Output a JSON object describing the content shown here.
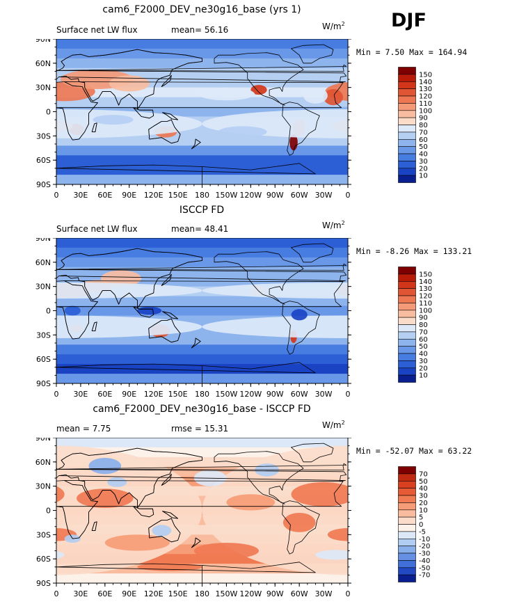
{
  "season": "DJF",
  "axes": {
    "lat_labels": [
      "90N",
      "60N",
      "30N",
      "0",
      "30S",
      "60S",
      "90S"
    ],
    "lon_labels": [
      "0",
      "30E",
      "60E",
      "90E",
      "120E",
      "150E",
      "180",
      "150W",
      "120W",
      "90W",
      "60W",
      "30W",
      "0"
    ]
  },
  "panels": [
    {
      "id": "model",
      "title": "cam6_F2000_DEV_ne30g16_base (yrs 1)",
      "left_label": "Surface net LW flux",
      "mean_label": "mean=",
      "mean_value": "56.16",
      "units": "W/m",
      "units_exp": "2",
      "range_text": "Min =   7.50 Max = 164.94",
      "colorbar": {
        "labels": [
          "150",
          "140",
          "130",
          "120",
          "110",
          "100",
          "90",
          "80",
          "70",
          "60",
          "50",
          "40",
          "30",
          "20",
          "10"
        ],
        "colors": [
          "#7f0000",
          "#b81c08",
          "#d2361a",
          "#e05533",
          "#ec7752",
          "#f49a78",
          "#f8bda1",
          "#fbdcc9",
          "#dde9f8",
          "#b5cff3",
          "#8eb4ee",
          "#6a98e8",
          "#477ce1",
          "#2c5fd6",
          "#1a43c4",
          "#0a1f8f"
        ]
      }
    },
    {
      "id": "obs",
      "title": "ISCCP FD",
      "left_label": "Surface net LW flux",
      "mean_label": "mean=",
      "mean_value": "48.41",
      "units": "W/m",
      "units_exp": "2",
      "range_text": "Min =  -8.26 Max = 133.21",
      "colorbar": {
        "labels": [
          "150",
          "140",
          "130",
          "120",
          "110",
          "100",
          "90",
          "80",
          "70",
          "60",
          "50",
          "40",
          "30",
          "20",
          "10"
        ],
        "colors": [
          "#7f0000",
          "#b81c08",
          "#d2361a",
          "#e05533",
          "#ec7752",
          "#f49a78",
          "#f8bda1",
          "#fbdcc9",
          "#dde9f8",
          "#b5cff3",
          "#8eb4ee",
          "#6a98e8",
          "#477ce1",
          "#2c5fd6",
          "#1a43c4",
          "#0a1f8f"
        ]
      }
    },
    {
      "id": "diff",
      "title": "cam6_F2000_DEV_ne30g16_base - ISCCP FD",
      "left_label": "mean =   7.75",
      "mean_label": "rmse =",
      "mean_value": "15.31",
      "units": "W/m",
      "units_exp": "2",
      "range_text": "Min = -52.07 Max =  63.22",
      "colorbar": {
        "labels": [
          "70",
          "50",
          "40",
          "30",
          "20",
          "10",
          "5",
          "0",
          "-5",
          "-10",
          "-20",
          "-30",
          "-40",
          "-50",
          "-70"
        ],
        "colors": [
          "#7f0000",
          "#c02a10",
          "#d8401f",
          "#e65a35",
          "#f07a52",
          "#f69c76",
          "#f9bc9e",
          "#fbdccb",
          "#fdf2ea",
          "#dce8f8",
          "#b2cdf2",
          "#89afeb",
          "#6590e3",
          "#416fd9",
          "#2248c2",
          "#0a1f8f"
        ]
      }
    }
  ]
}
